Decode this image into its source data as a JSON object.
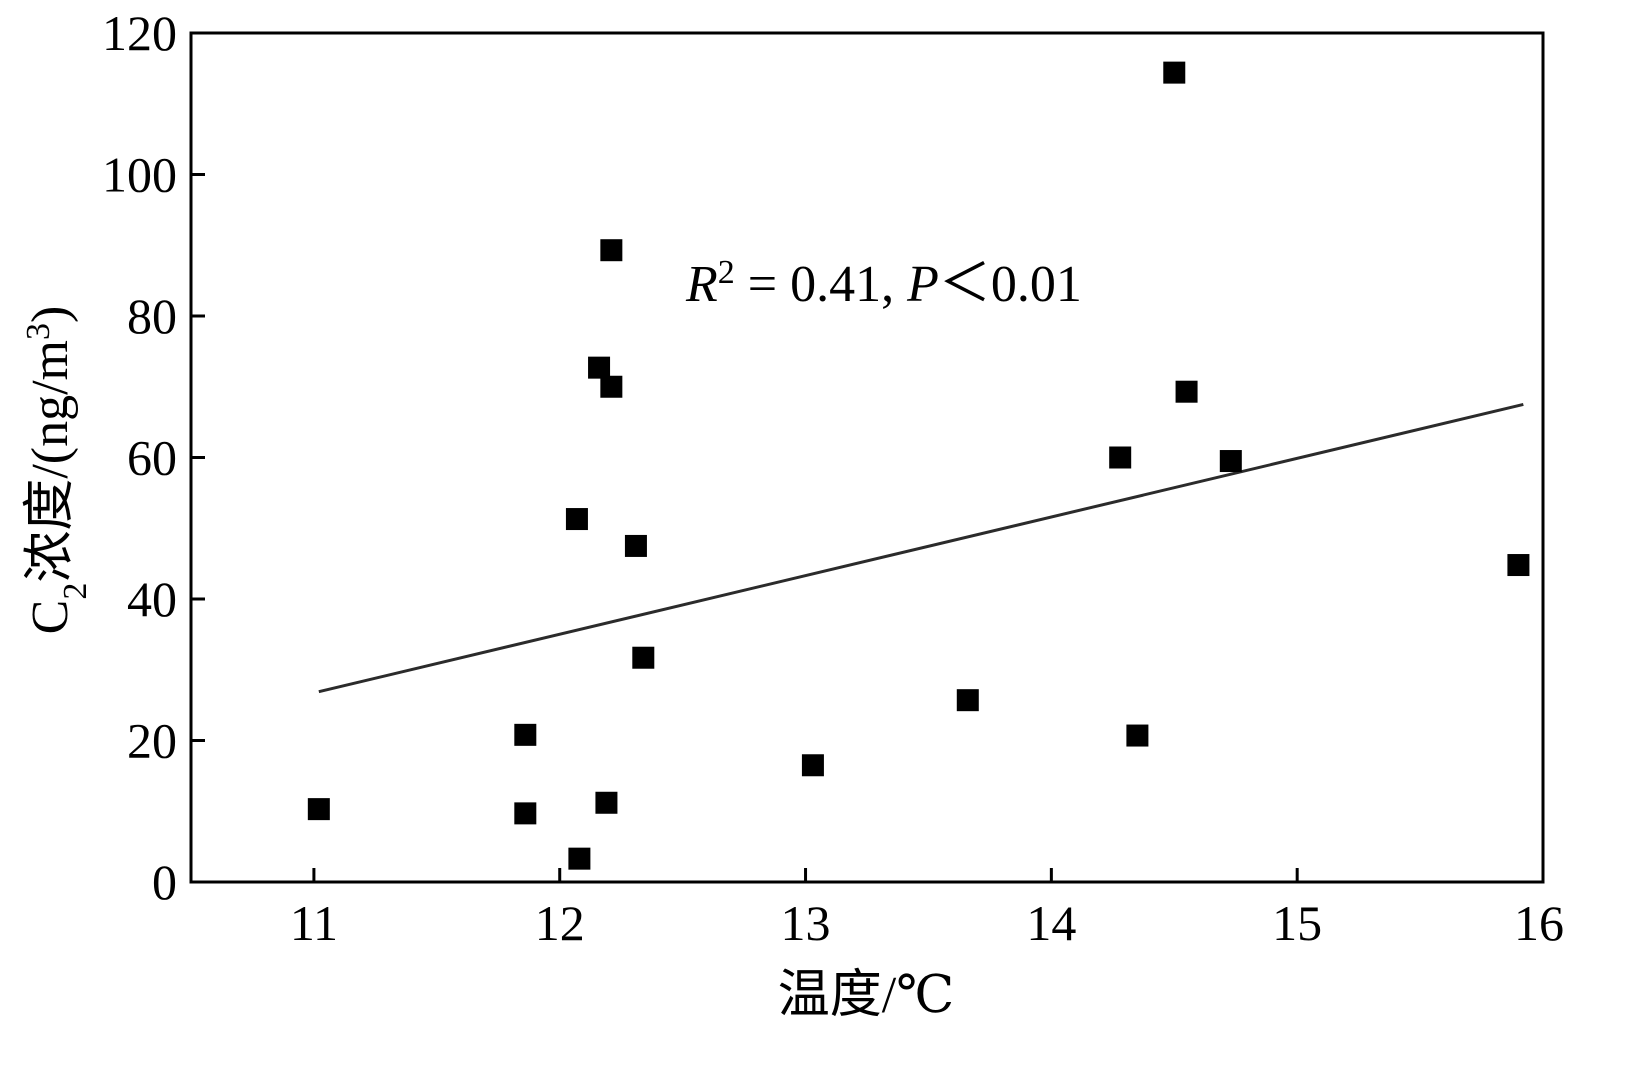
{
  "chart_data": {
    "type": "scatter",
    "title": "",
    "xlabel": "温度/℃",
    "ylabel": {
      "prefix": "C",
      "subscript": "2",
      "middle": "浓度/(ng/m",
      "superscript": "3",
      "suffix": ")"
    },
    "xlim": [
      10.5,
      16
    ],
    "ylim": [
      0,
      120
    ],
    "xticks": [
      11,
      12,
      13,
      14,
      15,
      16
    ],
    "yticks": [
      0,
      20,
      40,
      60,
      80,
      100,
      120
    ],
    "grid": false,
    "legend": "none",
    "points": [
      {
        "x": 11.02,
        "y": 10.3
      },
      {
        "x": 11.86,
        "y": 20.8
      },
      {
        "x": 11.86,
        "y": 9.7
      },
      {
        "x": 12.07,
        "y": 51.3
      },
      {
        "x": 12.08,
        "y": 3.3
      },
      {
        "x": 12.16,
        "y": 72.7
      },
      {
        "x": 12.19,
        "y": 11.2
      },
      {
        "x": 12.21,
        "y": 70.0
      },
      {
        "x": 12.21,
        "y": 89.3
      },
      {
        "x": 12.31,
        "y": 47.5
      },
      {
        "x": 12.34,
        "y": 31.7
      },
      {
        "x": 13.03,
        "y": 16.5
      },
      {
        "x": 13.66,
        "y": 25.7
      },
      {
        "x": 14.28,
        "y": 60.0
      },
      {
        "x": 14.35,
        "y": 20.7
      },
      {
        "x": 14.5,
        "y": 114.4
      },
      {
        "x": 14.55,
        "y": 69.3
      },
      {
        "x": 14.73,
        "y": 59.5
      },
      {
        "x": 15.9,
        "y": 44.8
      }
    ],
    "fit_line": {
      "x": [
        11.02,
        15.92
      ],
      "y": [
        26.9,
        67.5
      ]
    },
    "annotation": {
      "r_symbol": "R",
      "r_power": "2",
      "equals_text": " = 0.41, ",
      "p_symbol": "P",
      "p_text": "＜0.01"
    },
    "colors": {
      "marker": "#000000",
      "fit_line": "#2b2b2b",
      "axis": "#000000"
    }
  }
}
